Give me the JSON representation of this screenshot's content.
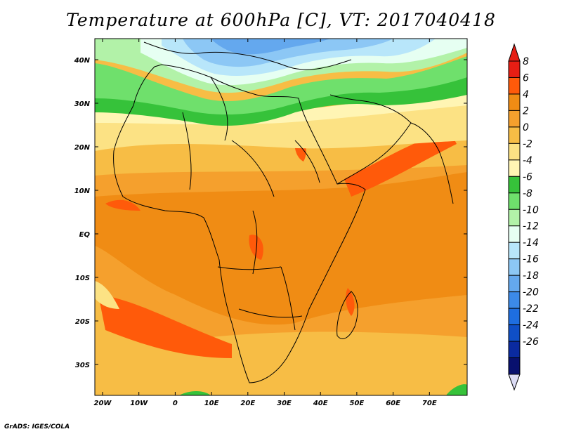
{
  "title": "Temperature at 600hPa [C], VT: 2017040418",
  "credit": "GrADS: IGES/COLA",
  "lat_labels": [
    "40N",
    "30N",
    "20N",
    "10N",
    "EQ",
    "10S",
    "20S",
    "30S"
  ],
  "lon_labels": [
    "20W",
    "10W",
    "0",
    "10E",
    "20E",
    "30E",
    "40E",
    "50E",
    "60E",
    "70E"
  ],
  "colorbar": {
    "labels": [
      "8",
      "6",
      "4",
      "2",
      "0",
      "-2",
      "-4",
      "-6",
      "-8",
      "-10",
      "-12",
      "-14",
      "-16",
      "-18",
      "-20",
      "-22",
      "-24",
      "-26"
    ],
    "colors": [
      "#e61e14",
      "#ff5a0a",
      "#f08c14",
      "#f5a02d",
      "#f7bd45",
      "#fce284",
      "#fff5b4",
      "#36c23a",
      "#6fe06c",
      "#b2f2a8",
      "#e6fff2",
      "#b8e6fa",
      "#8cc7f5",
      "#64a8ee",
      "#3c8ae8",
      "#1e6ee0",
      "#0f4fc6",
      "#0a2aa0",
      "#08106e"
    ],
    "end_low_color": "#dcdcf5"
  },
  "map": {
    "region": "Africa and surrounding oceans",
    "lon_range": [
      -22,
      80
    ],
    "lat_range": [
      -37,
      45
    ]
  }
}
